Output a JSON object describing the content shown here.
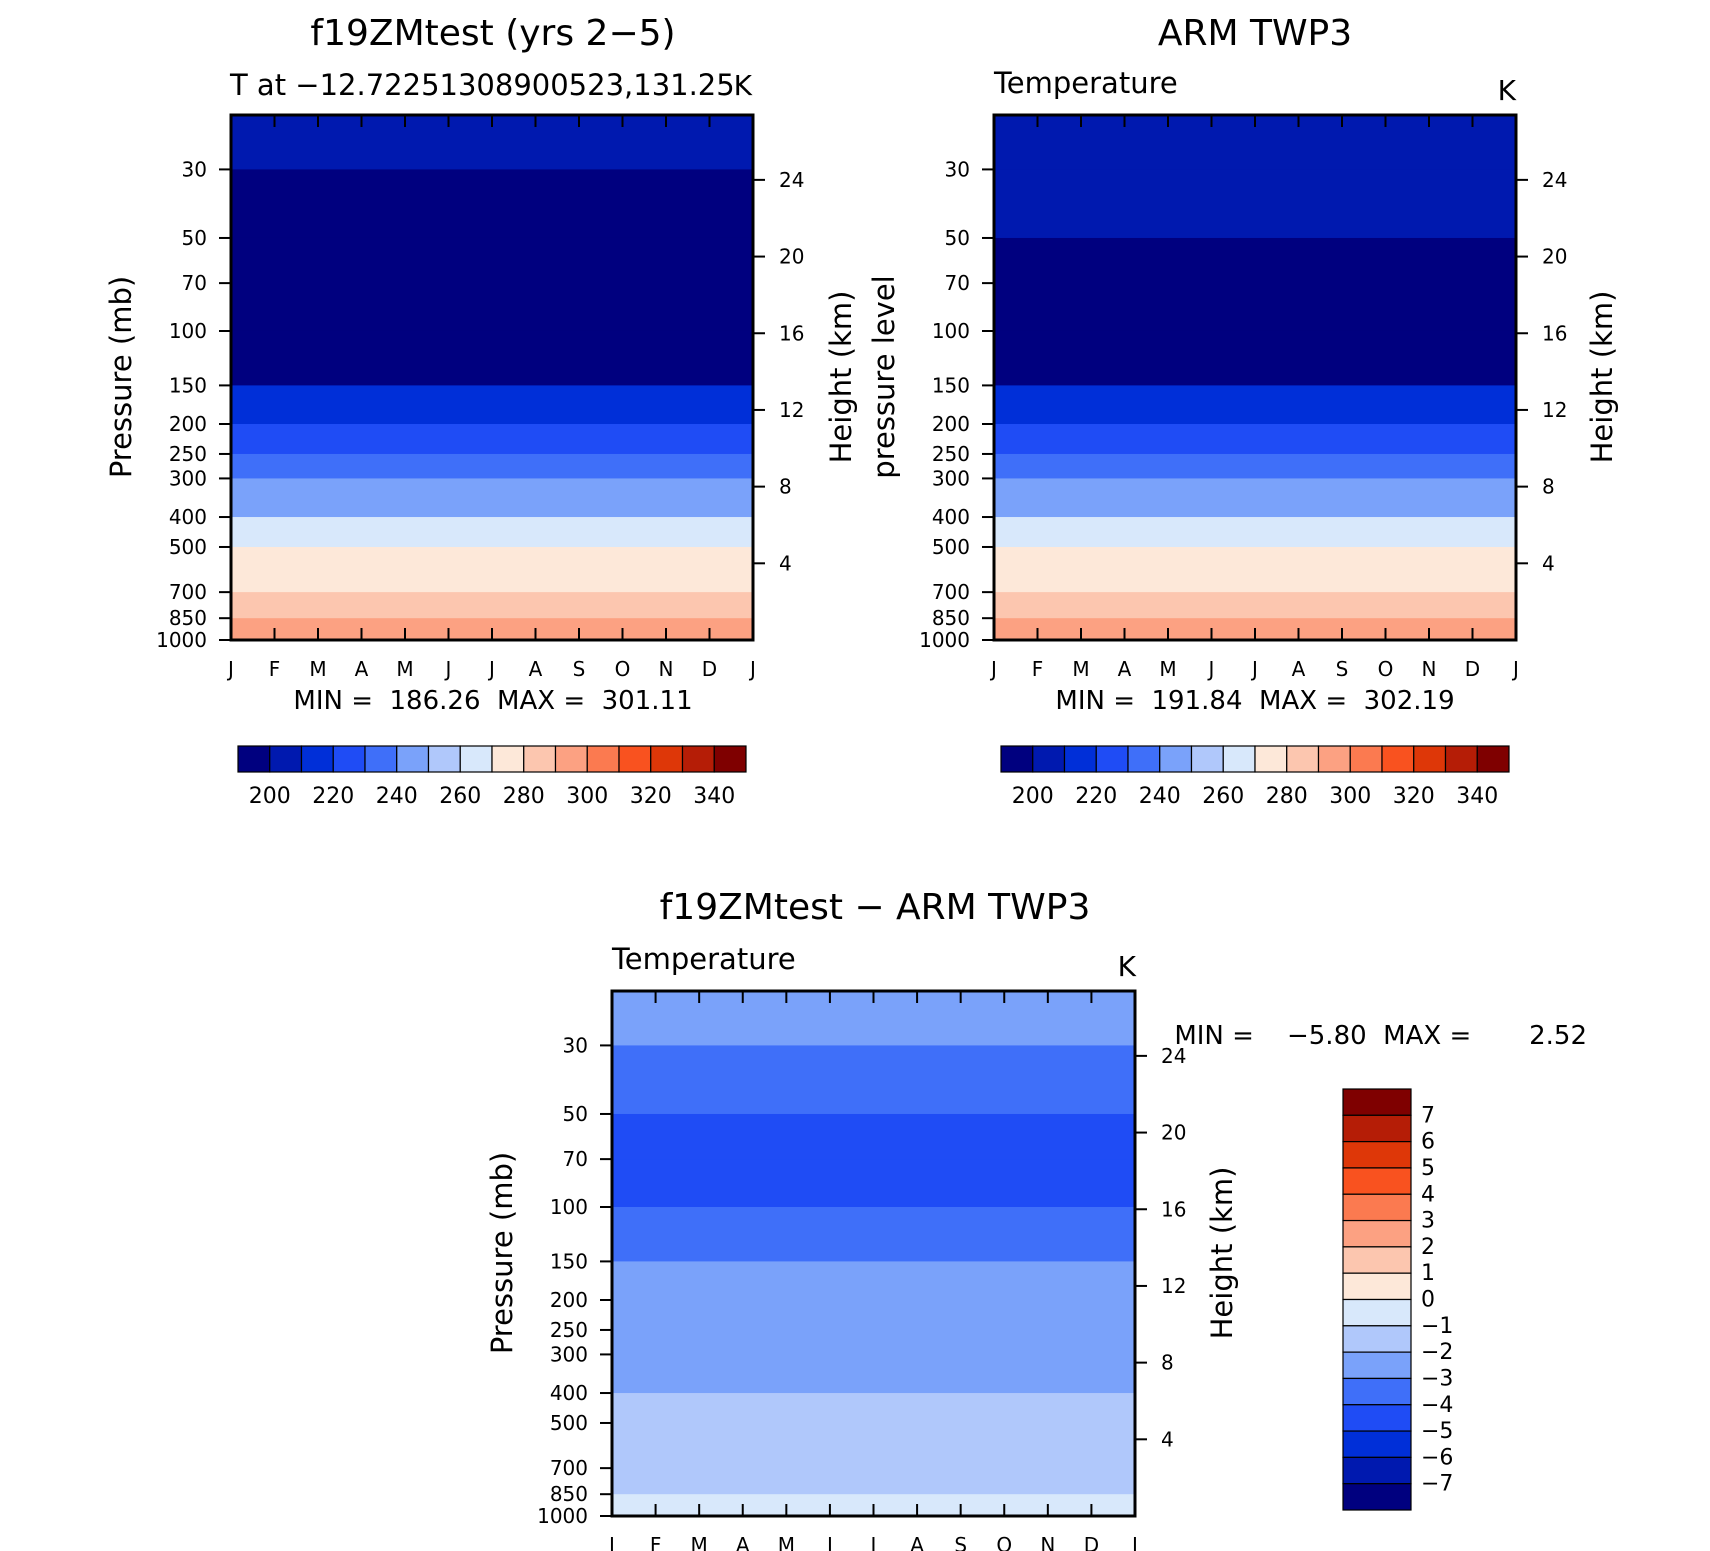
{
  "chart_data": [
    {
      "type": "heatmap",
      "title": "f19ZMtest (yrs 2−5)",
      "subtitle_left": "T at −12.72251308900523,131.25",
      "units": "K",
      "ylabel_left": "Pressure (mb)",
      "ylabel_right": "Height (km)",
      "x_ticks": [
        "J",
        "F",
        "M",
        "A",
        "M",
        "J",
        "J",
        "A",
        "S",
        "O",
        "N",
        "D",
        "J"
      ],
      "y_ticks_left": [
        30,
        50,
        70,
        100,
        150,
        200,
        250,
        300,
        400,
        500,
        700,
        850,
        1000
      ],
      "y_ticks_right": [
        24,
        20,
        16,
        12,
        8,
        4
      ],
      "ylim": [
        20,
        1000
      ],
      "stats": "MIN =  186.26  MAX =  301.11",
      "min": 186.26,
      "max": 301.11,
      "colorbar_labels": [
        "200",
        "220",
        "240",
        "260",
        "280",
        "300",
        "320",
        "340"
      ],
      "levels": [
        {
          "p": 30,
          "t": 202
        },
        {
          "p": 50,
          "t": 192
        },
        {
          "p": 70,
          "t": 199
        },
        {
          "p": 100,
          "t": 191
        },
        {
          "p": 150,
          "t": 202
        },
        {
          "p": 200,
          "t": 219
        },
        {
          "p": 250,
          "t": 229
        },
        {
          "p": 300,
          "t": 240
        },
        {
          "p": 400,
          "t": 254
        },
        {
          "p": 500,
          "t": 266
        },
        {
          "p": 700,
          "t": 282
        },
        {
          "p": 850,
          "t": 292
        },
        {
          "p": 1000,
          "t": 300
        }
      ]
    },
    {
      "type": "heatmap",
      "title": "ARM TWP3",
      "subtitle_left": "Temperature",
      "units": "K",
      "ylabel_left": "pressure level",
      "ylabel_right": "Height (km)",
      "x_ticks": [
        "J",
        "F",
        "M",
        "A",
        "M",
        "J",
        "J",
        "A",
        "S",
        "O",
        "N",
        "D",
        "J"
      ],
      "y_ticks_left": [
        30,
        50,
        70,
        100,
        150,
        200,
        250,
        300,
        400,
        500,
        700,
        850,
        1000
      ],
      "y_ticks_right": [
        24,
        20,
        16,
        12,
        8,
        4
      ],
      "ylim": [
        20,
        1000
      ],
      "stats": "MIN =  191.84  MAX =  302.19",
      "min": 191.84,
      "max": 302.19,
      "colorbar_labels": [
        "200",
        "220",
        "240",
        "260",
        "280",
        "300",
        "320",
        "340"
      ],
      "levels": [
        {
          "p": 30,
          "t": 205
        },
        {
          "p": 50,
          "t": 196
        },
        {
          "p": 70,
          "t": 199
        },
        {
          "p": 100,
          "t": 194
        },
        {
          "p": 150,
          "t": 205
        },
        {
          "p": 200,
          "t": 222
        },
        {
          "p": 250,
          "t": 232
        },
        {
          "p": 300,
          "t": 242
        },
        {
          "p": 400,
          "t": 256
        },
        {
          "p": 500,
          "t": 267
        },
        {
          "p": 700,
          "t": 284
        },
        {
          "p": 850,
          "t": 293
        },
        {
          "p": 1000,
          "t": 301
        }
      ]
    },
    {
      "type": "heatmap",
      "title": "f19ZMtest − ARM TWP3",
      "subtitle_left": "Temperature",
      "units": "K",
      "ylabel_left": "Pressure (mb)",
      "ylabel_right": "Height (km)",
      "x_ticks": [
        "J",
        "F",
        "M",
        "A",
        "M",
        "J",
        "J",
        "A",
        "S",
        "O",
        "N",
        "D",
        "J"
      ],
      "y_ticks_left": [
        30,
        50,
        70,
        100,
        150,
        200,
        250,
        300,
        400,
        500,
        700,
        850,
        1000
      ],
      "y_ticks_right": [
        24,
        20,
        16,
        12,
        8,
        4
      ],
      "ylim": [
        20,
        1000
      ],
      "stats": "MIN =    −5.80  MAX =       2.52",
      "min": -5.8,
      "max": 2.52,
      "colorbar_labels": [
        "7",
        "6",
        "5",
        "4",
        "3",
        "2",
        "1",
        "0",
        "−1",
        "−2",
        "−3",
        "−4",
        "−5",
        "−6",
        "−7"
      ],
      "levels": [
        {
          "p": 30,
          "t": -2.5
        },
        {
          "p": 50,
          "t": -3.8
        },
        {
          "p": 70,
          "t": -4.6
        },
        {
          "p": 100,
          "t": -4.3
        },
        {
          "p": 150,
          "t": -3.2
        },
        {
          "p": 200,
          "t": -2.8
        },
        {
          "p": 300,
          "t": -2.6
        },
        {
          "p": 400,
          "t": -1.8
        },
        {
          "p": 500,
          "t": -0.8
        },
        {
          "p": 700,
          "t": -1.5
        },
        {
          "p": 850,
          "t": -1.3
        },
        {
          "p": 1000,
          "t": -0.5
        }
      ]
    }
  ],
  "colorscales": {
    "absolute": [
      "#00007f",
      "#0019af",
      "#002fd8",
      "#1f4cf5",
      "#3f6ff9",
      "#7aa2fa",
      "#b0c8fb",
      "#d8e8fb",
      "#fde8d9",
      "#fcc6af",
      "#fca182",
      "#fb7a50",
      "#f9521f",
      "#de3708",
      "#b51d06",
      "#7f0000"
    ],
    "difference": [
      "#7f0000",
      "#b51d06",
      "#de3708",
      "#f9521f",
      "#fb7a50",
      "#fca182",
      "#fcc6af",
      "#fde8d9",
      "#d8e8fb",
      "#b0c8fb",
      "#7aa2fa",
      "#3f6ff9",
      "#1f4cf5",
      "#002fd8",
      "#0019af",
      "#00007f"
    ]
  }
}
